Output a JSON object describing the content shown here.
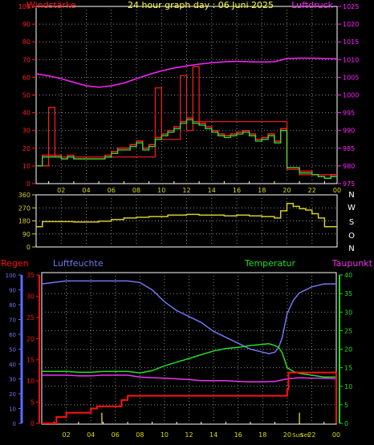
{
  "title": "24 hour graph day : 06 Juni 2025",
  "colors": {
    "background": "#000000",
    "plot_border": "#ffffff",
    "grid": "#8a8a8a",
    "wind": "#ff2020",
    "gust": "#ff2020",
    "wind_avg": "#33dd33",
    "pressure": "#ff22ff",
    "direction": "#d4cc2a",
    "humidity": "#6f78ee",
    "temperature": "#22dd22",
    "dewpoint": "#ee33ee",
    "rain": "#ff1111",
    "rain_rate": "#c8c020",
    "scale_blue": "#5a6cff",
    "scale_green": "#22dd22"
  },
  "chart_data": [
    {
      "type": "line",
      "id": "wind_pressure",
      "left_label": "Windstärke",
      "right_label": "Luftdruck",
      "left_ticks": [
        "0",
        "10",
        "20",
        "30",
        "40",
        "50",
        "60",
        "70",
        "80",
        "90",
        "100"
      ],
      "right_ticks": [
        "975",
        "980",
        "985",
        "990",
        "995",
        "1000",
        "1005",
        "1010",
        "1015",
        "1020",
        "1025"
      ],
      "x_ticks": [
        "02",
        "04",
        "06",
        "08",
        "10",
        "12",
        "14",
        "16",
        "18",
        "20",
        "22",
        "00"
      ],
      "left_ylim": [
        0,
        100
      ],
      "right_ylim": [
        975,
        1025
      ],
      "grid": true,
      "series": [
        {
          "key": "gust",
          "x": [
            0,
            1,
            1,
            1.5,
            1.5,
            3,
            3,
            4,
            4,
            9.5,
            9.5,
            10,
            10,
            11.5,
            11.5,
            12,
            12,
            12.5,
            12.5,
            13,
            13,
            20,
            20,
            21,
            21,
            24
          ],
          "y": [
            10,
            10,
            43,
            43,
            15,
            15,
            15,
            15,
            15,
            15,
            54,
            54,
            25,
            25,
            61,
            61,
            30,
            30,
            66,
            66,
            35,
            35,
            8,
            8,
            5,
            5
          ]
        },
        {
          "key": "wind",
          "x": [
            0,
            0.5,
            0.5,
            2,
            2,
            2.5,
            2.5,
            3,
            3,
            3.5,
            3.5,
            5.5,
            5.5,
            6,
            6,
            6.5,
            6.5,
            7.5,
            7.5,
            8,
            8,
            8.5,
            8.5,
            9,
            9,
            9.5,
            9.5,
            10,
            10,
            10.5,
            10.5,
            11,
            11,
            11.5,
            11.5,
            12,
            12,
            12.5,
            12.5,
            13,
            13,
            13.5,
            13.5,
            14,
            14,
            14.5,
            14.5,
            15,
            15,
            15.5,
            15.5,
            16,
            16,
            16.5,
            16.5,
            17,
            17,
            17.5,
            17.5,
            18,
            18,
            18.5,
            18.5,
            19,
            19,
            19.5,
            19.5,
            20,
            20,
            20.5,
            20.5,
            21,
            21,
            22,
            22,
            22.5,
            22.5,
            23,
            23,
            23.5,
            23.5,
            24
          ],
          "y": [
            10,
            10,
            16,
            16,
            14,
            14,
            16,
            16,
            14,
            14,
            14,
            14,
            16,
            16,
            18,
            18,
            20,
            20,
            22,
            22,
            24,
            24,
            20,
            20,
            22,
            22,
            26,
            26,
            28,
            28,
            30,
            30,
            32,
            32,
            35,
            35,
            37,
            37,
            35,
            35,
            34,
            34,
            32,
            32,
            30,
            30,
            28,
            28,
            27,
            27,
            28,
            28,
            29,
            29,
            30,
            30,
            28,
            28,
            25,
            25,
            26,
            26,
            28,
            28,
            24,
            24,
            31,
            31,
            9,
            9,
            9,
            9,
            7,
            7,
            5,
            5,
            4,
            4,
            3,
            3,
            5,
            5
          ]
        },
        {
          "key": "wind_avg",
          "x": [
            0,
            0.5,
            0.5,
            2,
            2,
            2.5,
            2.5,
            3,
            3,
            3.5,
            3.5,
            5.5,
            5.5,
            6,
            6,
            6.5,
            6.5,
            7.5,
            7.5,
            8,
            8,
            8.5,
            8.5,
            9,
            9,
            9.5,
            9.5,
            10,
            10,
            10.5,
            10.5,
            11,
            11,
            11.5,
            11.5,
            12,
            12,
            12.5,
            12.5,
            13,
            13,
            13.5,
            13.5,
            14,
            14,
            14.5,
            14.5,
            15,
            15,
            15.5,
            15.5,
            16,
            16,
            16.5,
            16.5,
            17,
            17,
            17.5,
            17.5,
            18,
            18,
            18.5,
            18.5,
            19,
            19,
            19.5,
            19.5,
            20,
            20,
            20.5,
            20.5,
            21,
            21,
            22,
            22,
            22.5,
            22.5,
            23,
            23,
            23.5,
            23.5,
            24
          ],
          "y": [
            10,
            10,
            15,
            15,
            14,
            14,
            15,
            15,
            14,
            14,
            14,
            14,
            15,
            15,
            17,
            17,
            19,
            19,
            21,
            21,
            23,
            23,
            19,
            19,
            21,
            21,
            25,
            25,
            27,
            27,
            29,
            29,
            31,
            31,
            34,
            34,
            36,
            36,
            34,
            34,
            33,
            33,
            31,
            31,
            29,
            29,
            27,
            27,
            26,
            26,
            27,
            27,
            28,
            28,
            29,
            29,
            27,
            27,
            24,
            24,
            25,
            25,
            27,
            27,
            23,
            23,
            30,
            30,
            9,
            9,
            9,
            9,
            6,
            6,
            5,
            5,
            4,
            4,
            3,
            3,
            4,
            4
          ]
        },
        {
          "key": "pressure",
          "axis": "right",
          "x": [
            0,
            1,
            2,
            3,
            4,
            5,
            6,
            7,
            8,
            9,
            10,
            11,
            12,
            13,
            14,
            15,
            16,
            17,
            18,
            19,
            20,
            21,
            22,
            23,
            24
          ],
          "y": [
            1006,
            1005.4,
            1004.6,
            1003.6,
            1002.6,
            1002.2,
            1002.6,
            1003.4,
            1004.6,
            1005.8,
            1006.8,
            1007.6,
            1008.2,
            1008.7,
            1009.1,
            1009.4,
            1009.5,
            1009.4,
            1009.3,
            1009.4,
            1010.3,
            1010.4,
            1010.4,
            1010.3,
            1010.2
          ]
        }
      ]
    },
    {
      "type": "line",
      "id": "direction",
      "left_ticks": [
        "0",
        "90",
        "180",
        "270",
        "360"
      ],
      "compass_labels": [
        "N",
        "W",
        "S",
        "O",
        "N"
      ],
      "left_ylim": [
        0,
        360
      ],
      "grid": true,
      "series": [
        {
          "key": "direction",
          "x": [
            0,
            0.5,
            0.5,
            3,
            3,
            5,
            5,
            6,
            6,
            7,
            7,
            8,
            8,
            9,
            9,
            10.5,
            10.5,
            12,
            12,
            13,
            13,
            15,
            15,
            16,
            16,
            17,
            17,
            18,
            18,
            19,
            19,
            19.5,
            19.5,
            20,
            20,
            20.5,
            20.5,
            21,
            21,
            21.5,
            21.5,
            22,
            22,
            22.5,
            22.5,
            23,
            23,
            24
          ],
          "y": [
            140,
            140,
            175,
            175,
            172,
            172,
            178,
            178,
            190,
            190,
            200,
            200,
            205,
            205,
            210,
            210,
            220,
            220,
            225,
            225,
            220,
            220,
            215,
            215,
            220,
            220,
            215,
            215,
            210,
            210,
            200,
            200,
            250,
            250,
            300,
            300,
            280,
            280,
            265,
            265,
            255,
            255,
            230,
            230,
            200,
            200,
            140,
            140
          ]
        }
      ]
    },
    {
      "type": "line",
      "id": "humidity_temp_rain",
      "labels": {
        "rain": "Regen",
        "humidity": "Luftfeuchte",
        "temperature": "Temperatur",
        "dewpoint": "Taupunkt"
      },
      "rain_ticks": [
        "0",
        "5",
        "10",
        "15",
        "20",
        "25",
        "30",
        "35"
      ],
      "humidity_ticks": [
        "0",
        "10",
        "20",
        "30",
        "40",
        "50",
        "60",
        "70",
        "80",
        "90",
        "100"
      ],
      "temperature_ticks": [
        "0",
        "5",
        "10",
        "15",
        "20",
        "25",
        "30",
        "35",
        "40"
      ],
      "x_ticks": [
        "02",
        "04",
        "06",
        "08",
        "10",
        "12",
        "14",
        "16",
        "18",
        "20",
        "22",
        "00"
      ],
      "special_ticks": [
        "Sun",
        "Set"
      ],
      "rain_ylim": [
        0,
        35
      ],
      "humidity_ylim": [
        0,
        100
      ],
      "temperature_ylim": [
        0,
        40
      ],
      "grid": true,
      "series": [
        {
          "key": "humidity",
          "x": [
            0,
            1,
            2,
            3,
            4,
            5,
            6,
            7,
            8,
            9,
            10,
            11,
            12,
            13,
            14,
            15,
            16,
            17,
            18,
            18.5,
            19,
            19.3,
            19.6,
            20,
            20.5,
            21,
            22,
            23,
            24
          ],
          "y": [
            94,
            95,
            96,
            96,
            96,
            96,
            96,
            96,
            95,
            90,
            82,
            76,
            72,
            68,
            62,
            58,
            54,
            50,
            48,
            47,
            48,
            51,
            58,
            74,
            83,
            88,
            92,
            94,
            94
          ]
        },
        {
          "key": "temperature",
          "x": [
            0,
            1,
            2,
            3,
            4,
            5,
            6,
            7,
            8,
            9,
            10,
            11,
            12,
            13,
            14,
            15,
            16,
            17,
            18,
            18.5,
            19,
            19.3,
            19.6,
            20,
            20.5,
            21,
            22,
            23,
            24
          ],
          "y": [
            14,
            14,
            14,
            13.8,
            13.8,
            14,
            14,
            14,
            13.6,
            14.2,
            15.5,
            16.5,
            17.5,
            18.5,
            19.5,
            20.2,
            20.5,
            21,
            21.3,
            21.5,
            21,
            20.5,
            19,
            15,
            14,
            13.5,
            13,
            12.5,
            12.5
          ]
        },
        {
          "key": "dewpoint",
          "x": [
            0,
            1,
            2,
            3,
            4,
            5,
            6,
            7,
            8,
            9,
            10,
            11,
            12,
            13,
            14,
            15,
            16,
            17,
            18,
            19,
            20,
            21,
            22,
            23,
            24
          ],
          "y": [
            13,
            13,
            13,
            12.8,
            12.8,
            13,
            13,
            13,
            12.5,
            12.3,
            12.2,
            12,
            11.8,
            11.5,
            11.5,
            11.5,
            11.3,
            11.2,
            11.2,
            11.3,
            12,
            12.3,
            12.2,
            12.2,
            12
          ]
        },
        {
          "key": "rain",
          "axis": "rain",
          "x": [
            0,
            1.2,
            1.2,
            2,
            2,
            4,
            4,
            4.5,
            4.5,
            6.5,
            6.5,
            7,
            7,
            20,
            20,
            20.1,
            20.1,
            24,
            24
          ],
          "y": [
            0,
            0,
            1.5,
            1.5,
            2.5,
            2.5,
            3.5,
            3.5,
            4.0,
            4.0,
            5.5,
            5.5,
            6.5,
            6.5,
            8.0,
            8.0,
            12.0,
            12.0,
            0
          ]
        },
        {
          "key": "rain_rate",
          "axis": "rain",
          "x": [
            4.9,
            21.0
          ],
          "y": [
            2.5,
            2.5
          ]
        }
      ]
    }
  ]
}
